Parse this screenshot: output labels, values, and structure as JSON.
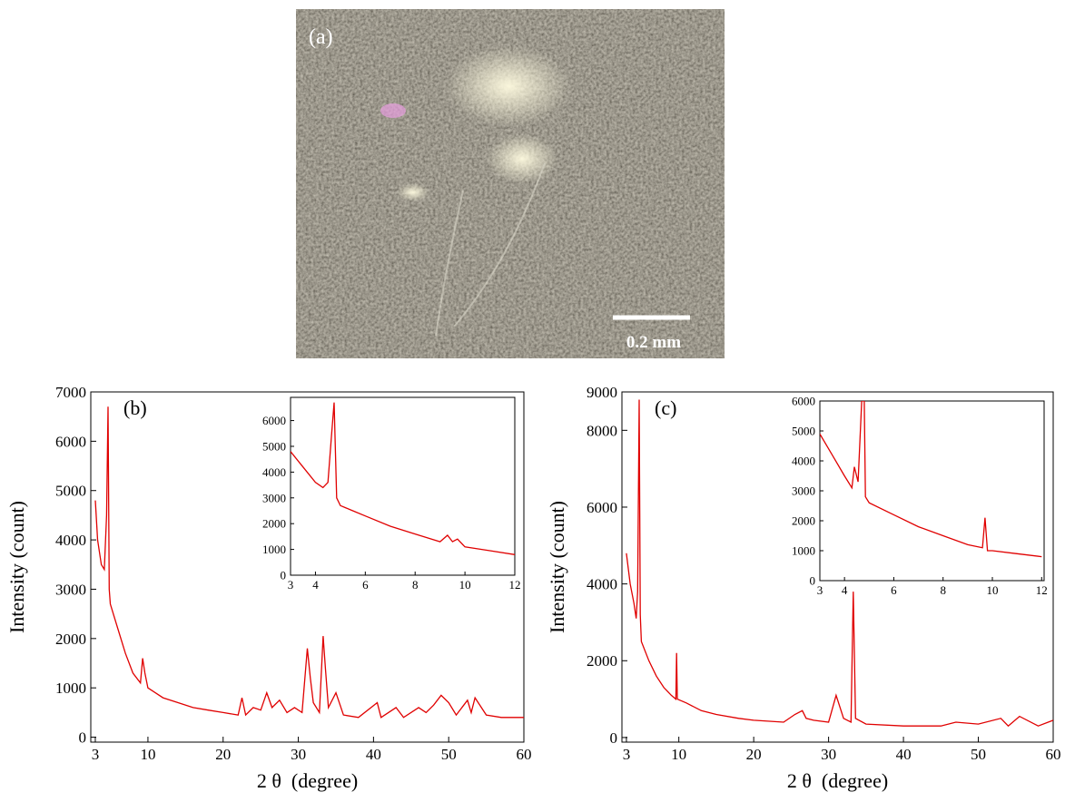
{
  "photo": {
    "label": "(a)",
    "scale_bar": "0.2 mm"
  },
  "chart_data": [
    {
      "type": "line",
      "annotation": "(b)",
      "x_label": "2 θ  (degree)",
      "y_label": "Intensity (count)",
      "color": "#e00000",
      "xlim": [
        2.4,
        60
      ],
      "ylim": [
        -100,
        7000
      ],
      "xticks": [
        3,
        10,
        20,
        30,
        40,
        50,
        60
      ],
      "yticks": [
        0,
        1000,
        2000,
        3000,
        4000,
        5000,
        6000,
        7000
      ],
      "x": [
        3,
        3.3,
        3.8,
        4.2,
        4.5,
        4.7,
        4.85,
        5,
        6,
        7,
        8,
        9,
        9.3,
        9.6,
        10,
        12,
        14,
        16,
        18,
        20,
        22,
        22.5,
        23,
        24,
        25,
        25.8,
        26.5,
        27.5,
        28.5,
        29.5,
        30.5,
        31.2,
        31.6,
        32,
        32.8,
        33.3,
        33.6,
        34,
        35,
        36,
        38,
        40.5,
        41,
        43,
        44,
        46,
        47,
        48,
        49,
        50,
        51,
        52.5,
        53,
        53.5,
        55,
        57,
        60
      ],
      "values": [
        4800,
        4000,
        3500,
        3400,
        4500,
        6700,
        3000,
        2700,
        2200,
        1700,
        1300,
        1100,
        1600,
        1300,
        1000,
        800,
        700,
        600,
        550,
        500,
        450,
        800,
        450,
        600,
        550,
        900,
        600,
        750,
        500,
        600,
        500,
        1800,
        1200,
        700,
        500,
        2050,
        1400,
        600,
        900,
        450,
        400,
        700,
        400,
        600,
        400,
        600,
        500,
        650,
        850,
        700,
        450,
        750,
        500,
        800,
        450,
        400,
        400
      ]
    },
    {
      "type": "line",
      "color": "#e00000",
      "xlim": [
        3,
        12
      ],
      "ylim": [
        0,
        6900
      ],
      "xticks": [
        3,
        4,
        6,
        8,
        10,
        12
      ],
      "yticks": [
        0,
        1000,
        2000,
        3000,
        4000,
        5000,
        6000
      ],
      "x": [
        3,
        3.5,
        4,
        4.3,
        4.5,
        4.65,
        4.75,
        4.85,
        5,
        5.5,
        6,
        7,
        8,
        9,
        9.3,
        9.5,
        9.7,
        10,
        11,
        12
      ],
      "values": [
        4800,
        4200,
        3600,
        3400,
        3600,
        5500,
        6700,
        3000,
        2700,
        2500,
        2300,
        1900,
        1600,
        1300,
        1550,
        1300,
        1400,
        1100,
        950,
        800
      ]
    },
    {
      "type": "line",
      "annotation": "(c)",
      "x_label": "2 θ  (degree)",
      "y_label": "Intensity (count)",
      "color": "#e00000",
      "xlim": [
        2.4,
        60
      ],
      "ylim": [
        -120,
        9000
      ],
      "xticks": [
        3,
        10,
        20,
        30,
        40,
        50,
        60
      ],
      "yticks": [
        0,
        2000,
        4000,
        6000,
        8000,
        9000
      ],
      "x": [
        3,
        3.5,
        4,
        4.3,
        4.5,
        4.7,
        4.85,
        5,
        6,
        7,
        8,
        9,
        9.6,
        9.7,
        9.8,
        11,
        13,
        15,
        18,
        20,
        24,
        25.5,
        26.5,
        27,
        28,
        30,
        31,
        31.5,
        32,
        33,
        33.3,
        33.6,
        35,
        40,
        45,
        47,
        50,
        53,
        54,
        55.5,
        58,
        60
      ],
      "values": [
        4800,
        4000,
        3500,
        3100,
        3800,
        8800,
        3200,
        2500,
        2000,
        1600,
        1300,
        1100,
        1000,
        2200,
        1000,
        900,
        700,
        600,
        500,
        450,
        400,
        600,
        700,
        500,
        450,
        400,
        1100,
        800,
        500,
        400,
        3800,
        500,
        350,
        300,
        300,
        400,
        350,
        500,
        300,
        550,
        300,
        450
      ]
    },
    {
      "type": "line",
      "color": "#e00000",
      "xlim": [
        3,
        12.1
      ],
      "ylim": [
        0,
        6000
      ],
      "xticks": [
        3,
        4,
        6,
        8,
        10,
        12
      ],
      "yticks": [
        0,
        1000,
        2000,
        3000,
        4000,
        5000,
        6000
      ],
      "x": [
        3,
        3.5,
        4,
        4.3,
        4.4,
        4.55,
        4.7,
        4.8,
        4.85,
        5,
        6,
        7,
        8,
        9,
        9.6,
        9.7,
        9.8,
        10,
        11,
        12
      ],
      "values": [
        4900,
        4200,
        3500,
        3100,
        3800,
        3300,
        6000,
        6000,
        2800,
        2600,
        2200,
        1800,
        1500,
        1200,
        1100,
        2100,
        1000,
        1000,
        900,
        800
      ]
    }
  ]
}
